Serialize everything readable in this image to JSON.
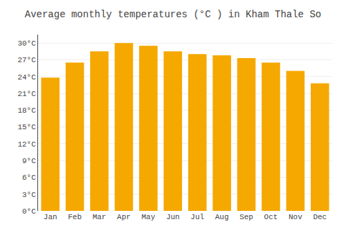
{
  "chart_data": {
    "type": "bar",
    "title": "Average monthly temperatures (°C ) in Kham Thale So",
    "categories": [
      "Jan",
      "Feb",
      "Mar",
      "Apr",
      "May",
      "Jun",
      "Jul",
      "Aug",
      "Sep",
      "Oct",
      "Nov",
      "Dec"
    ],
    "values": [
      23.8,
      26.5,
      28.5,
      30.0,
      29.5,
      28.5,
      28.0,
      27.8,
      27.3,
      26.5,
      25.0,
      22.8
    ],
    "color": "#F5A800",
    "ylim": [
      0,
      31.5
    ],
    "yticks": [
      {
        "value": 0,
        "label": "0°C"
      },
      {
        "value": 3,
        "label": "3°C"
      },
      {
        "value": 6,
        "label": "6°C"
      },
      {
        "value": 9,
        "label": "9°C"
      },
      {
        "value": 12,
        "label": "12°C"
      },
      {
        "value": 15,
        "label": "15°C"
      },
      {
        "value": 18,
        "label": "18°C"
      },
      {
        "value": 21,
        "label": "21°C"
      },
      {
        "value": 24,
        "label": "24°C"
      },
      {
        "value": 27,
        "label": "27°C"
      },
      {
        "value": 30,
        "label": "30°C"
      }
    ],
    "grid": true
  }
}
